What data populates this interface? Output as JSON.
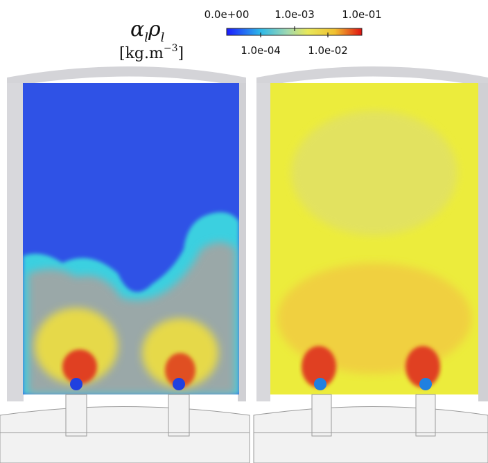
{
  "legend": {
    "symbol": [
      "α",
      "l",
      "ρ",
      "l"
    ],
    "unit": [
      "[kg.m",
      "−3",
      "]"
    ],
    "ticks_top": [
      "0.0e+00",
      "1.0e-03",
      "1.0e-01"
    ],
    "ticks_bottom": [
      "1.0e-04",
      "1.0e-02"
    ]
  }
}
